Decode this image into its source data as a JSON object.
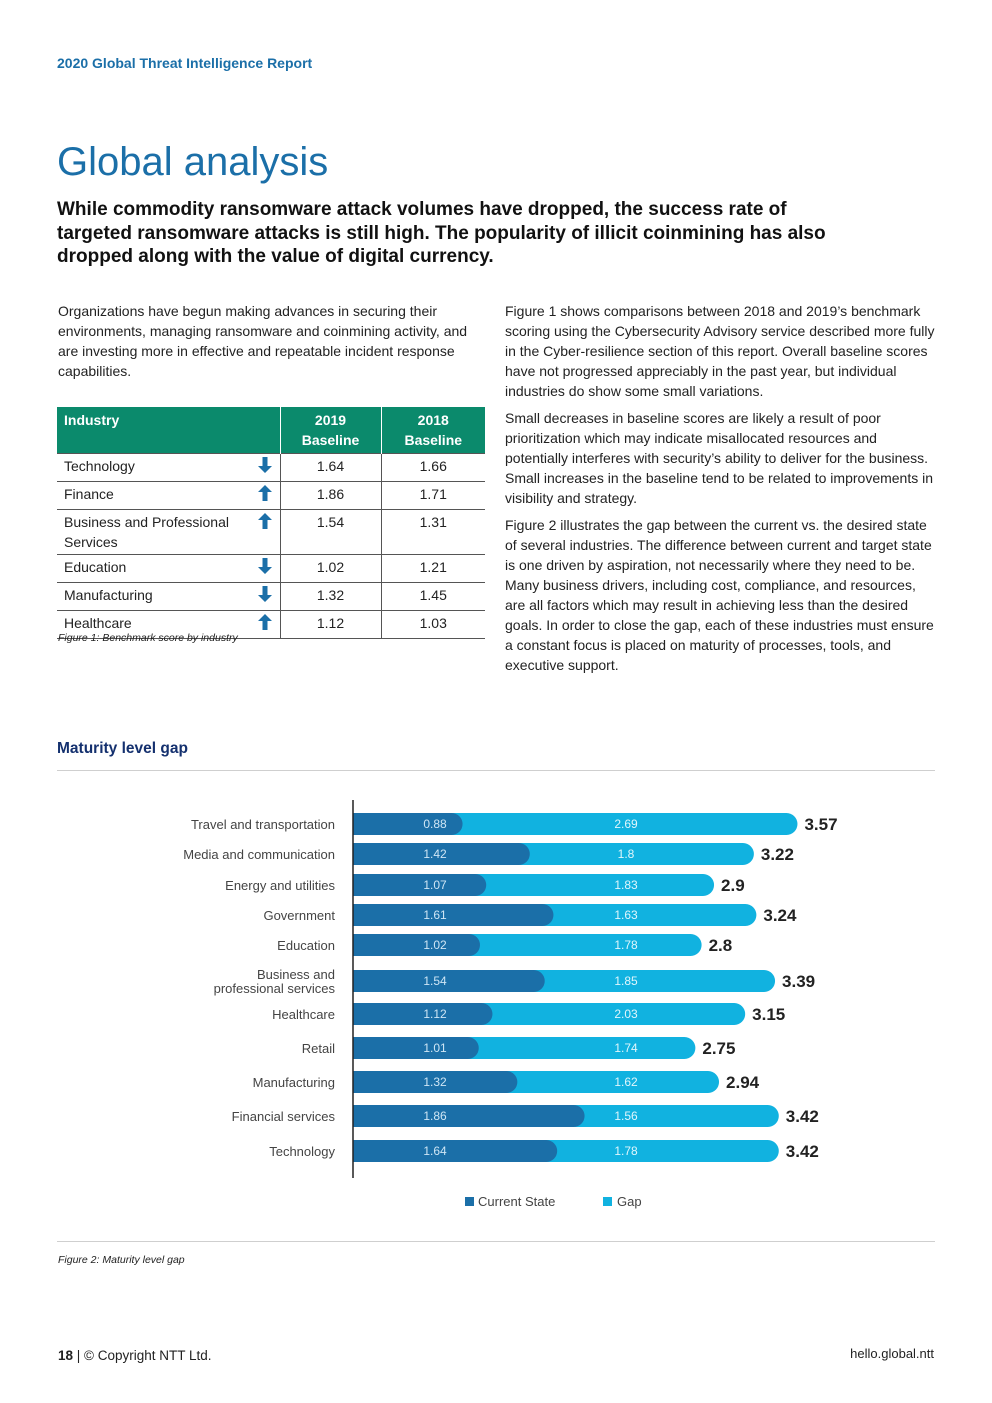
{
  "header": {
    "report_title": "2020 Global Threat Intelligence Report"
  },
  "page_title": "Global analysis",
  "lead": "While commodity ransomware attack volumes have dropped, the success rate of targeted ransomware attacks is still high. The popularity of illicit coinmining has also dropped along with the value of digital currency.",
  "left_column": {
    "paragraph": "Organizations have begun making advances in securing their environments, managing ransomware and coinmining activity, and are investing more in effective and repeatable incident response capabilities."
  },
  "right_column": {
    "paragraphs": [
      "Figure 1 shows comparisons between 2018 and 2019’s benchmark scoring using the Cybersecurity Advisory service described more fully in the Cyber-resilience section of this report. Overall baseline scores have not progressed appreciably in the past year, but individual industries do show some small variations.",
      "Small decreases in baseline scores are likely a result of poor prioritization which may indicate misallocated resources and potentially interferes with security’s ability to deliver for the business. Small increases in the baseline tend to be related to improvements in visibility and strategy.",
      "Figure 2 illustrates the gap between the current vs. the desired state of several industries. The difference between current and target state is one driven by aspiration, not necessarily where they need to be. Many business drivers, including cost, compliance, and resources, are all factors which may result in achieving less than the desired goals. In order to close the gap, each of these industries must ensure a constant focus is placed on maturity of processes, tools, and executive support."
    ]
  },
  "table": {
    "headers": {
      "industry": "Industry",
      "col2019_line1": "2019",
      "col2019_line2": "Baseline",
      "col2018_line1": "2018",
      "col2018_line2": "Baseline"
    },
    "rows": [
      {
        "industry": "Technology",
        "trend": "down",
        "v2019": "1.64",
        "v2018": "1.66"
      },
      {
        "industry": "Finance",
        "trend": "up",
        "v2019": "1.86",
        "v2018": "1.71"
      },
      {
        "industry": "Business and Professional Services",
        "trend": "up",
        "v2019": "1.54",
        "v2018": "1.31"
      },
      {
        "industry": "Education",
        "trend": "down",
        "v2019": "1.02",
        "v2018": "1.21"
      },
      {
        "industry": "Manufacturing",
        "trend": "down",
        "v2019": "1.32",
        "v2018": "1.45"
      },
      {
        "industry": "Healthcare",
        "trend": "up",
        "v2019": "1.12",
        "v2018": "1.03"
      }
    ],
    "caption": "Figure 1: Benchmark score by industry"
  },
  "chart_section_title": "Maturity level gap",
  "chart_data": {
    "type": "bar",
    "orientation": "horizontal",
    "stacked": true,
    "categories": [
      "Travel and transportation",
      "Media and communication",
      "Energy and utilities",
      "Government",
      "Education",
      "Business and professional services",
      "Healthcare",
      "Retail",
      "Manufacturing",
      "Financial services",
      "Technology"
    ],
    "category_lines": [
      [
        "Travel and transportation"
      ],
      [
        "Media and communication"
      ],
      [
        "Energy and utilities"
      ],
      [
        "Government"
      ],
      [
        "Education"
      ],
      [
        "Business and",
        "professional services"
      ],
      [
        "Healthcare"
      ],
      [
        "Retail"
      ],
      [
        "Manufacturing"
      ],
      [
        "Financial services"
      ],
      [
        "Technology"
      ]
    ],
    "series": [
      {
        "name": "Current State",
        "color": "#1b6fa8",
        "values": [
          0.88,
          1.42,
          1.07,
          1.61,
          1.02,
          1.54,
          1.12,
          1.01,
          1.32,
          1.86,
          1.64
        ]
      },
      {
        "name": "Gap",
        "color": "#11b2e0",
        "values": [
          2.69,
          1.8,
          1.83,
          1.63,
          1.78,
          1.85,
          2.03,
          1.74,
          1.62,
          1.56,
          1.78
        ]
      }
    ],
    "totals": [
      3.57,
      3.22,
      2.9,
      3.24,
      2.8,
      3.39,
      3.15,
      2.75,
      2.94,
      3.42,
      3.42
    ],
    "legend_position": "bottom-center",
    "grid": false
  },
  "chart_caption": "Figure 2: Maturity level gap",
  "footer": {
    "page_number": "18",
    "copyright": " | © Copyright NTT Ltd.",
    "url": "hello.global.ntt"
  },
  "colors": {
    "brand_blue": "#1b6fa8",
    "table_header": "#0b8a6c",
    "section_navy": "#14306e",
    "gap_cyan": "#11b2e0"
  }
}
